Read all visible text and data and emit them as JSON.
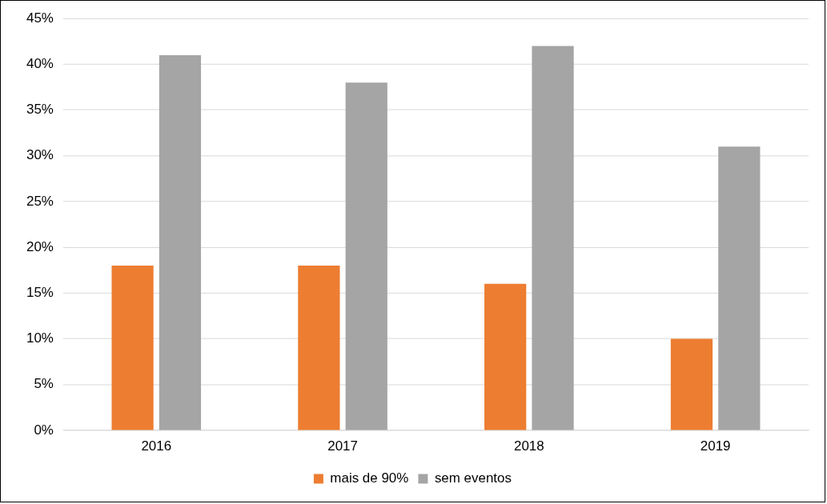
{
  "chart_data": {
    "type": "bar",
    "categories": [
      "2016",
      "2017",
      "2018",
      "2019"
    ],
    "series": [
      {
        "name": "mais de 90%",
        "color": "#ed7d31",
        "values": [
          18,
          18,
          16,
          10
        ]
      },
      {
        "name": "sem eventos",
        "color": "#a5a5a5",
        "values": [
          41,
          38,
          42,
          31
        ]
      }
    ],
    "ylim": [
      0,
      45
    ],
    "yticks": [
      {
        "value": 0,
        "label": "0%"
      },
      {
        "value": 5,
        "label": "5%"
      },
      {
        "value": 10,
        "label": "10%"
      },
      {
        "value": 15,
        "label": "15%"
      },
      {
        "value": 20,
        "label": "20%"
      },
      {
        "value": 25,
        "label": "25%"
      },
      {
        "value": 30,
        "label": "30%"
      },
      {
        "value": 35,
        "label": "35%"
      },
      {
        "value": 40,
        "label": "40%"
      },
      {
        "value": 45,
        "label": "45%"
      }
    ],
    "grid": "y",
    "legend": "bottom"
  }
}
